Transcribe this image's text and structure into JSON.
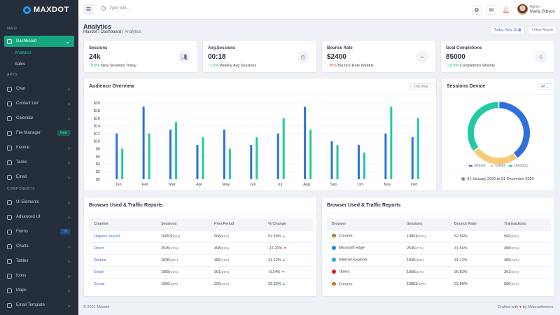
{
  "app": {
    "logo": "MAXDOT"
  },
  "sidebar": {
    "main_label": "MAIN",
    "apps_label": "APPS",
    "components_label": "COMPONENTS",
    "dashboard": {
      "label": "Dashboard",
      "sub": [
        "Analytics",
        "Sales"
      ]
    },
    "apps": [
      {
        "label": "Chat",
        "icon": "chat-icon"
      },
      {
        "label": "Contact List",
        "icon": "contacts-icon"
      },
      {
        "label": "Calendar",
        "icon": "calendar-icon"
      },
      {
        "label": "File Manager",
        "icon": "folder-icon",
        "badge": "New"
      },
      {
        "label": "Invoice",
        "icon": "invoice-icon"
      },
      {
        "label": "Tasks",
        "icon": "tasks-icon"
      },
      {
        "label": "Email",
        "icon": "mail-icon"
      }
    ],
    "components": [
      {
        "label": "UI Elements",
        "icon": "elements-icon"
      },
      {
        "label": "Advanced UI",
        "icon": "advanced-icon"
      },
      {
        "label": "Forms",
        "icon": "forms-icon",
        "badge": "10"
      },
      {
        "label": "Charts",
        "icon": "chart-icon"
      },
      {
        "label": "Tables",
        "icon": "table-icon"
      },
      {
        "label": "Icons",
        "icon": "icons-icon"
      },
      {
        "label": "Maps",
        "icon": "map-icon"
      },
      {
        "label": "Email Template",
        "icon": "email-template-icon"
      }
    ]
  },
  "topbar": {
    "search_placeholder": "Type text...",
    "user_role": "Admin",
    "user_name": "Maria Gibson"
  },
  "header": {
    "title": "Analytics",
    "breadcrumb": [
      "Maxdot",
      "Dashboard",
      "Analytics"
    ],
    "date_label": "Today:",
    "date_value": "May 15",
    "new_report": "+ New Report"
  },
  "stats": [
    {
      "title": "Sessions",
      "value": "24k",
      "change": "9.5%",
      "arrow": "↑",
      "dir": "up",
      "label": "New Sessions Today",
      "icon": "users-icon"
    },
    {
      "title": "Avg.Sessions",
      "value": "00:18",
      "change": "1.5%",
      "arrow": "↑",
      "dir": "up",
      "label": "Weekly Avg.Sessions",
      "icon": "clock-icon"
    },
    {
      "title": "Bounce Rate",
      "value": "$2400",
      "change": "35%",
      "arrow": "↓",
      "dir": "down",
      "label": "Bounce Rate Weekly",
      "icon": "activity-icon"
    },
    {
      "title": "Goal Completions",
      "value": "85000",
      "change": "10.5%",
      "arrow": "↑",
      "dir": "up",
      "label": "Completions Weekly",
      "icon": "target-icon"
    }
  ],
  "audience": {
    "title": "Audience Overview",
    "filter": "This Year",
    "colors": {
      "a": "#2f6fe0",
      "b": "#22c9a4"
    }
  },
  "chart_data": [
    {
      "type": "bar",
      "title": "Audience Overview",
      "categories": [
        "Jan",
        "Feb",
        "Mar",
        "Apr",
        "May",
        "Jun",
        "Jul",
        "Aug",
        "Sep",
        "Oct",
        "Nov",
        "Dec"
      ],
      "series": [
        {
          "values": [
            12,
            19,
            13,
            9,
            13,
            9,
            12,
            19,
            10,
            9,
            12,
            11
          ]
        },
        {
          "values": [
            8,
            12,
            15,
            11,
            8,
            11,
            16,
            13,
            9,
            7,
            19,
            16
          ]
        }
      ],
      "yticks": [
        "$0",
        "$2",
        "$4",
        "$6",
        "$8",
        "$10",
        "$12",
        "$14",
        "$16",
        "$18",
        "$20"
      ],
      "ylim": [
        0,
        20
      ],
      "grid": true
    },
    {
      "type": "pie",
      "title": "Sessions Device",
      "labels": [
        "Mobile",
        "Tablet",
        "Desktop"
      ],
      "values": [
        40,
        25,
        35
      ],
      "colors": [
        "#2f6fe0",
        "#f7cb73",
        "#22c9a4"
      ]
    }
  ],
  "device": {
    "title": "Sessions Device",
    "filter": "All",
    "legend": [
      "Mobile",
      "Tablet",
      "Desktop"
    ],
    "date_range": "01 January 2020 to 31 December 2020"
  },
  "traffic": {
    "title": "Browser Used & Traffic Reports",
    "headers": [
      "Channel",
      "Sessions",
      "Prev.Period",
      "% Change"
    ],
    "rows": [
      {
        "name": "Organic search",
        "sessions": "10853",
        "sp": "(52%)",
        "prev": "566",
        "pp": "(92%)",
        "change": "52.80%",
        "dir": "up"
      },
      {
        "name": "Direct",
        "sessions": "2545",
        "sp": "(47%)",
        "prev": "498",
        "pp": "(81%)",
        "change": "-17.20%",
        "dir": "down"
      },
      {
        "name": "Referal",
        "sessions": "1836",
        "sp": "(38%)",
        "prev": "455",
        "pp": "(74%)",
        "change": "41.12%",
        "dir": "up"
      },
      {
        "name": "Email",
        "sessions": "1958",
        "sp": "(31%)",
        "prev": "361",
        "pp": "(61%)",
        "change": "-8.24%",
        "dir": "down"
      },
      {
        "name": "Social",
        "sessions": "1566",
        "sp": "(26%)",
        "prev": "299",
        "pp": "(49%)",
        "change": "29.33%",
        "dir": "up"
      }
    ]
  },
  "browsers": {
    "title": "Browser Used & Traffic Reports",
    "headers": [
      "Browser",
      "Sessions",
      "Bounce Rate",
      "Transactions"
    ],
    "rows": [
      {
        "name": "Chrome",
        "icon": "chrome-icon",
        "color": "#e8453c",
        "sessions": "10853",
        "sp": "(52%)",
        "bounce": "52.80%",
        "tx": "566",
        "tp": "(92%)"
      },
      {
        "name": "Microsoft Edge",
        "icon": "edge-icon",
        "color": "#1e88d8",
        "sessions": "2545",
        "sp": "(47%)",
        "bounce": "47.54%",
        "tx": "498",
        "tp": "(81%)"
      },
      {
        "name": "Internet-Explorer",
        "icon": "ie-icon",
        "color": "#3aa3e3",
        "sessions": "1836",
        "sp": "(38%)",
        "bounce": "41.12%",
        "tx": "455",
        "tp": "(74%)"
      },
      {
        "name": "Opera",
        "icon": "opera-icon",
        "color": "#d6202a",
        "sessions": "1958",
        "sp": "(31%)",
        "bounce": "36.82%",
        "tx": "361",
        "tp": "(61%)"
      },
      {
        "name": "Chrome",
        "icon": "chrome-icon",
        "color": "#e8453c",
        "sessions": "10853",
        "sp": "(52%)",
        "bounce": "52.80%",
        "tx": "566",
        "tp": "(92%)"
      }
    ]
  },
  "footer": {
    "copyright": "© 2021 Maxdot",
    "credit_a": "Crafted with",
    "credit_b": "by Mannatthemes"
  }
}
